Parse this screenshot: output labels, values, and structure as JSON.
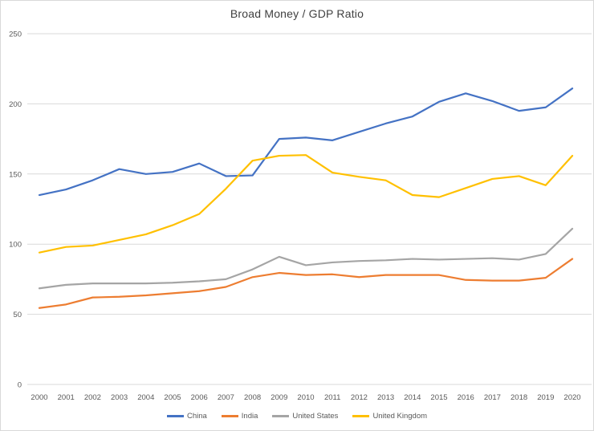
{
  "chart_data": {
    "type": "line",
    "title": "Broad Money / GDP Ratio",
    "x": [
      2000,
      2001,
      2002,
      2003,
      2004,
      2005,
      2006,
      2007,
      2008,
      2009,
      2010,
      2011,
      2012,
      2013,
      2014,
      2015,
      2016,
      2017,
      2018,
      2019,
      2020
    ],
    "series": [
      {
        "name": "China",
        "color": "#4472C4",
        "values": [
          135,
          139,
          145.5,
          153.5,
          150,
          151.5,
          157.5,
          148.5,
          149,
          175,
          176,
          174,
          180,
          186,
          191,
          201.5,
          207.5,
          202,
          195,
          197.5,
          211
        ]
      },
      {
        "name": "India",
        "color": "#ED7D31",
        "values": [
          54.5,
          57,
          62,
          62.5,
          63.5,
          65,
          66.5,
          69.5,
          76.5,
          79.5,
          78,
          78.5,
          76.5,
          78,
          78,
          78,
          74.5,
          74,
          74,
          76,
          89.5
        ]
      },
      {
        "name": "United States",
        "color": "#A5A5A5",
        "values": [
          68.5,
          71,
          72,
          72,
          72,
          72.5,
          73.5,
          75,
          82,
          91,
          85,
          87,
          88,
          88.5,
          89.5,
          89,
          89.5,
          90,
          89,
          93,
          111
        ]
      },
      {
        "name": "United Kingdom",
        "color": "#FFC000",
        "values": [
          94,
          98,
          99,
          103,
          107,
          113.5,
          121.5,
          139.5,
          159.5,
          163,
          163.5,
          151,
          148,
          145.5,
          135,
          133.5,
          140,
          146.5,
          148.5,
          142,
          163
        ]
      }
    ],
    "ylim": [
      0,
      250
    ],
    "yticks": [
      0,
      50,
      100,
      150,
      200,
      250
    ],
    "grid": "horizontal",
    "legend_position": "bottom",
    "xlabel": "",
    "ylabel": "",
    "title_color": "#404040",
    "axis_text_color": "#595959",
    "grid_color": "#d9d9d9",
    "background_color": "#ffffff"
  }
}
